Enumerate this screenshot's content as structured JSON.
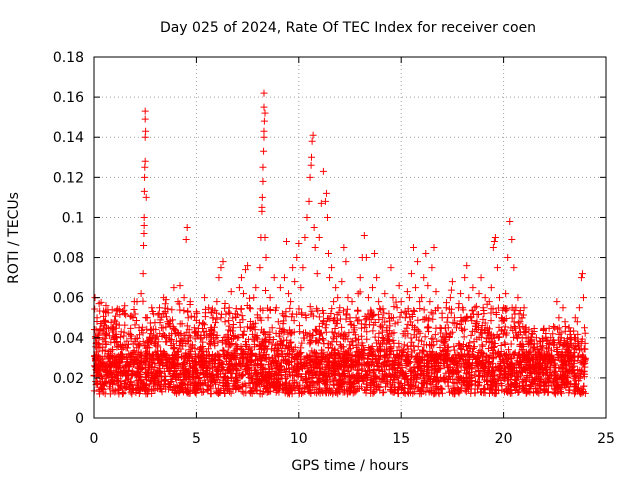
{
  "chart_data": {
    "type": "scatter",
    "title": "Day 025 of 2024, Rate Of TEC Index for receiver coen",
    "xlabel": "GPS time / hours",
    "ylabel": "ROTI / TECUs",
    "xlim": [
      0,
      25
    ],
    "ylim": [
      0,
      0.18
    ],
    "xticks": [
      0,
      5,
      10,
      15,
      20,
      25
    ],
    "xtick_labels": [
      "0",
      "5",
      "10",
      "15",
      "20",
      "25"
    ],
    "yticks": [
      0,
      0.02,
      0.04,
      0.06,
      0.08,
      0.1,
      0.12,
      0.14,
      0.16,
      0.18
    ],
    "ytick_labels": [
      "0",
      "0.02",
      "0.04",
      "0.06",
      "0.08",
      "0.1",
      "0.12",
      "0.14",
      "0.16",
      "0.18"
    ],
    "grid": true,
    "marker": "+",
    "color": "#ff0000",
    "series": [
      {
        "name": "ROTI",
        "points": [
          [
            0.0,
            0.021
          ],
          [
            0.05,
            0.06
          ],
          [
            0.1,
            0.044
          ],
          [
            0.15,
            0.05
          ],
          [
            0.2,
            0.035
          ],
          [
            0.25,
            0.057
          ],
          [
            0.3,
            0.03
          ],
          [
            0.35,
            0.015
          ],
          [
            0.4,
            0.025
          ],
          [
            0.5,
            0.046
          ],
          [
            0.55,
            0.038
          ],
          [
            0.6,
            0.02
          ],
          [
            0.7,
            0.032
          ],
          [
            0.8,
            0.012
          ],
          [
            0.9,
            0.045
          ],
          [
            1.0,
            0.028
          ],
          [
            1.1,
            0.04
          ],
          [
            1.2,
            0.018
          ],
          [
            1.3,
            0.036
          ],
          [
            1.4,
            0.022
          ],
          [
            1.5,
            0.056
          ],
          [
            1.6,
            0.03
          ],
          [
            1.7,
            0.042
          ],
          [
            1.8,
            0.016
          ],
          [
            1.9,
            0.05
          ],
          [
            2.0,
            0.038
          ],
          [
            2.1,
            0.058
          ],
          [
            2.2,
            0.045
          ],
          [
            2.3,
            0.062
          ],
          [
            2.4,
            0.072
          ],
          [
            2.42,
            0.086
          ],
          [
            2.44,
            0.092
          ],
          [
            2.45,
            0.1
          ],
          [
            2.46,
            0.113
          ],
          [
            2.47,
            0.12
          ],
          [
            2.48,
            0.125
          ],
          [
            2.5,
            0.128
          ],
          [
            2.5,
            0.14
          ],
          [
            2.52,
            0.143
          ],
          [
            2.5,
            0.149
          ],
          [
            2.5,
            0.153
          ],
          [
            2.55,
            0.11
          ],
          [
            2.45,
            0.096
          ],
          [
            2.6,
            0.05
          ],
          [
            2.7,
            0.035
          ],
          [
            2.8,
            0.044
          ],
          [
            2.9,
            0.052
          ],
          [
            3.0,
            0.04
          ],
          [
            3.1,
            0.03
          ],
          [
            3.2,
            0.055
          ],
          [
            3.3,
            0.045
          ],
          [
            3.4,
            0.06
          ],
          [
            3.5,
            0.038
          ],
          [
            3.6,
            0.048
          ],
          [
            3.7,
            0.025
          ],
          [
            3.8,
            0.054
          ],
          [
            3.9,
            0.065
          ],
          [
            4.0,
            0.042
          ],
          [
            4.1,
            0.058
          ],
          [
            4.2,
            0.066
          ],
          [
            4.3,
            0.047
          ],
          [
            4.4,
            0.06
          ],
          [
            4.5,
            0.089
          ],
          [
            4.55,
            0.095
          ],
          [
            4.6,
            0.05
          ],
          [
            4.7,
            0.058
          ],
          [
            4.8,
            0.035
          ],
          [
            4.9,
            0.045
          ],
          [
            5.0,
            0.053
          ],
          [
            5.1,
            0.028
          ],
          [
            5.2,
            0.04
          ],
          [
            5.3,
            0.047
          ],
          [
            5.4,
            0.06
          ],
          [
            5.5,
            0.033
          ],
          [
            5.6,
            0.055
          ],
          [
            5.7,
            0.042
          ],
          [
            5.8,
            0.05
          ],
          [
            5.9,
            0.036
          ],
          [
            6.0,
            0.058
          ],
          [
            6.1,
            0.07
          ],
          [
            6.2,
            0.075
          ],
          [
            6.3,
            0.078
          ],
          [
            6.4,
            0.048
          ],
          [
            6.5,
            0.038
          ],
          [
            6.6,
            0.055
          ],
          [
            6.7,
            0.063
          ],
          [
            6.8,
            0.045
          ],
          [
            6.9,
            0.052
          ],
          [
            7.0,
            0.04
          ],
          [
            7.1,
            0.065
          ],
          [
            7.2,
            0.07
          ],
          [
            7.3,
            0.062
          ],
          [
            7.4,
            0.074
          ],
          [
            7.5,
            0.076
          ],
          [
            7.6,
            0.055
          ],
          [
            7.7,
            0.045
          ],
          [
            7.8,
            0.06
          ],
          [
            7.9,
            0.065
          ],
          [
            8.0,
            0.05
          ],
          [
            8.1,
            0.075
          ],
          [
            8.15,
            0.09
          ],
          [
            8.2,
            0.103
          ],
          [
            8.2,
            0.105
          ],
          [
            8.22,
            0.11
          ],
          [
            8.25,
            0.118
          ],
          [
            8.25,
            0.125
          ],
          [
            8.28,
            0.133
          ],
          [
            8.3,
            0.14
          ],
          [
            8.3,
            0.143
          ],
          [
            8.32,
            0.148
          ],
          [
            8.35,
            0.152
          ],
          [
            8.3,
            0.155
          ],
          [
            8.3,
            0.162
          ],
          [
            8.4,
            0.08
          ],
          [
            8.35,
            0.09
          ],
          [
            8.5,
            0.05
          ],
          [
            8.6,
            0.06
          ],
          [
            8.7,
            0.045
          ],
          [
            8.8,
            0.07
          ],
          [
            8.9,
            0.055
          ],
          [
            9.0,
            0.048
          ],
          [
            9.1,
            0.065
          ],
          [
            9.2,
            0.052
          ],
          [
            9.3,
            0.07
          ],
          [
            9.4,
            0.088
          ],
          [
            9.5,
            0.062
          ],
          [
            9.6,
            0.058
          ],
          [
            9.7,
            0.075
          ],
          [
            9.8,
            0.068
          ],
          [
            9.9,
            0.08
          ],
          [
            10.0,
            0.087
          ],
          [
            10.1,
            0.065
          ],
          [
            10.2,
            0.075
          ],
          [
            10.3,
            0.09
          ],
          [
            10.4,
            0.1
          ],
          [
            10.5,
            0.108
          ],
          [
            10.55,
            0.12
          ],
          [
            10.6,
            0.126
          ],
          [
            10.62,
            0.13
          ],
          [
            10.65,
            0.138
          ],
          [
            10.7,
            0.141
          ],
          [
            10.75,
            0.095
          ],
          [
            10.8,
            0.085
          ],
          [
            10.9,
            0.072
          ],
          [
            11.0,
            0.09
          ],
          [
            11.1,
            0.107
          ],
          [
            11.2,
            0.123
          ],
          [
            11.3,
            0.108
          ],
          [
            11.35,
            0.112
          ],
          [
            11.4,
            0.1
          ],
          [
            11.45,
            0.082
          ],
          [
            11.5,
            0.07
          ],
          [
            11.6,
            0.075
          ],
          [
            11.7,
            0.058
          ],
          [
            11.8,
            0.065
          ],
          [
            11.9,
            0.06
          ],
          [
            12.0,
            0.055
          ],
          [
            12.1,
            0.068
          ],
          [
            12.2,
            0.085
          ],
          [
            12.3,
            0.078
          ],
          [
            12.4,
            0.06
          ],
          [
            12.5,
            0.05
          ],
          [
            12.6,
            0.058
          ],
          [
            12.7,
            0.045
          ],
          [
            12.8,
            0.05
          ],
          [
            12.9,
            0.062
          ],
          [
            13.0,
            0.07
          ],
          [
            13.1,
            0.08
          ],
          [
            13.2,
            0.091
          ],
          [
            13.3,
            0.08
          ],
          [
            13.4,
            0.06
          ],
          [
            13.5,
            0.052
          ],
          [
            13.6,
            0.065
          ],
          [
            13.7,
            0.082
          ],
          [
            13.8,
            0.07
          ],
          [
            13.9,
            0.058
          ],
          [
            14.0,
            0.054
          ],
          [
            14.1,
            0.05
          ],
          [
            14.2,
            0.062
          ],
          [
            14.3,
            0.045
          ],
          [
            14.4,
            0.052
          ],
          [
            14.5,
            0.075
          ],
          [
            14.6,
            0.06
          ],
          [
            14.7,
            0.047
          ],
          [
            14.8,
            0.055
          ],
          [
            14.9,
            0.066
          ],
          [
            15.0,
            0.058
          ],
          [
            15.1,
            0.042
          ],
          [
            15.2,
            0.05
          ],
          [
            15.3,
            0.063
          ],
          [
            15.4,
            0.06
          ],
          [
            15.5,
            0.072
          ],
          [
            15.6,
            0.085
          ],
          [
            15.7,
            0.065
          ],
          [
            15.8,
            0.078
          ],
          [
            15.9,
            0.058
          ],
          [
            16.0,
            0.06
          ],
          [
            16.1,
            0.07
          ],
          [
            16.2,
            0.082
          ],
          [
            16.3,
            0.066
          ],
          [
            16.4,
            0.058
          ],
          [
            16.5,
            0.075
          ],
          [
            16.6,
            0.085
          ],
          [
            16.7,
            0.063
          ],
          [
            16.8,
            0.055
          ],
          [
            16.9,
            0.045
          ],
          [
            17.0,
            0.05
          ],
          [
            17.1,
            0.04
          ],
          [
            17.2,
            0.055
          ],
          [
            17.3,
            0.045
          ],
          [
            17.4,
            0.06
          ],
          [
            17.5,
            0.068
          ],
          [
            17.6,
            0.05
          ],
          [
            17.7,
            0.045
          ],
          [
            17.8,
            0.055
          ],
          [
            17.9,
            0.062
          ],
          [
            18.0,
            0.055
          ],
          [
            18.1,
            0.07
          ],
          [
            18.2,
            0.076
          ],
          [
            18.3,
            0.06
          ],
          [
            18.4,
            0.05
          ],
          [
            18.5,
            0.065
          ],
          [
            18.6,
            0.055
          ],
          [
            18.7,
            0.048
          ],
          [
            18.8,
            0.062
          ],
          [
            18.9,
            0.07
          ],
          [
            19.0,
            0.055
          ],
          [
            19.1,
            0.06
          ],
          [
            19.2,
            0.045
          ],
          [
            19.3,
            0.058
          ],
          [
            19.4,
            0.065
          ],
          [
            19.5,
            0.085
          ],
          [
            19.55,
            0.088
          ],
          [
            19.6,
            0.09
          ],
          [
            19.7,
            0.075
          ],
          [
            19.8,
            0.06
          ],
          [
            19.9,
            0.05
          ],
          [
            20.0,
            0.055
          ],
          [
            20.1,
            0.062
          ],
          [
            20.2,
            0.08
          ],
          [
            20.3,
            0.098
          ],
          [
            20.4,
            0.089
          ],
          [
            20.5,
            0.075
          ],
          [
            20.6,
            0.055
          ],
          [
            20.7,
            0.06
          ],
          [
            20.8,
            0.048
          ],
          [
            20.9,
            0.05
          ],
          [
            21.0,
            0.055
          ],
          [
            21.1,
            0.045
          ],
          [
            21.2,
            0.04
          ],
          [
            21.3,
            0.038
          ],
          [
            21.4,
            0.042
          ],
          [
            21.5,
            0.035
          ],
          [
            21.6,
            0.04
          ],
          [
            21.7,
            0.033
          ],
          [
            21.8,
            0.038
          ],
          [
            21.9,
            0.036
          ],
          [
            22.0,
            0.03
          ],
          [
            22.1,
            0.035
          ],
          [
            22.2,
            0.03
          ],
          [
            22.3,
            0.04
          ],
          [
            22.4,
            0.042
          ],
          [
            22.5,
            0.045
          ],
          [
            22.6,
            0.058
          ],
          [
            22.7,
            0.05
          ],
          [
            22.8,
            0.04
          ],
          [
            22.9,
            0.055
          ],
          [
            23.0,
            0.048
          ],
          [
            23.1,
            0.038
          ],
          [
            23.2,
            0.045
          ],
          [
            23.3,
            0.04
          ],
          [
            23.4,
            0.036
          ],
          [
            23.5,
            0.05
          ],
          [
            23.6,
            0.048
          ],
          [
            23.7,
            0.055
          ],
          [
            23.8,
            0.07
          ],
          [
            23.85,
            0.072
          ],
          [
            23.9,
            0.06
          ],
          [
            23.95,
            0.045
          ]
        ]
      }
    ]
  }
}
